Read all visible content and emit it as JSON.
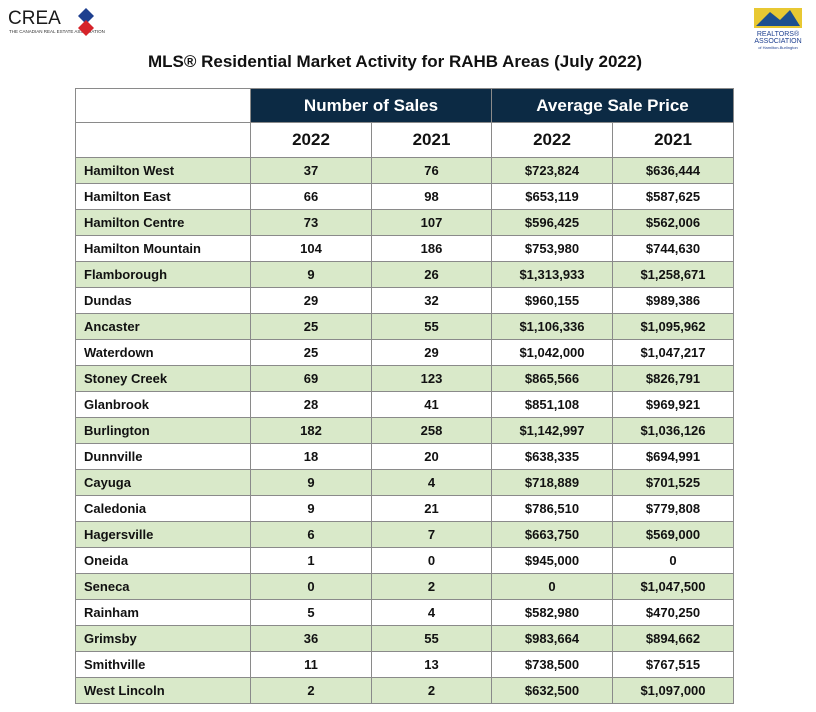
{
  "logos": {
    "left": {
      "name": "CREA",
      "tagline": "THE CANADIAN REAL ESTATE ASSOCIATION"
    },
    "right": {
      "line1": "REALTORS®",
      "line2": "ASSOCIATION",
      "line3": "of Hamilton-Burlington"
    }
  },
  "header": {
    "title": "MLS® Residential Market Activity for RAHB Areas (July 2022)"
  },
  "table": {
    "groups": [
      "Number of Sales",
      "Average Sale Price"
    ],
    "years": [
      "2022",
      "2021",
      "2022",
      "2021"
    ],
    "rows": [
      [
        "Hamilton West",
        "37",
        "76",
        "$723,824",
        "$636,444"
      ],
      [
        "Hamilton East",
        "66",
        "98",
        "$653,119",
        "$587,625"
      ],
      [
        "Hamilton Centre",
        "73",
        "107",
        "$596,425",
        "$562,006"
      ],
      [
        "Hamilton Mountain",
        "104",
        "186",
        "$753,980",
        "$744,630"
      ],
      [
        "Flamborough",
        "9",
        "26",
        "$1,313,933",
        "$1,258,671"
      ],
      [
        "Dundas",
        "29",
        "32",
        "$960,155",
        "$989,386"
      ],
      [
        "Ancaster",
        "25",
        "55",
        "$1,106,336",
        "$1,095,962"
      ],
      [
        "Waterdown",
        "25",
        "29",
        "$1,042,000",
        "$1,047,217"
      ],
      [
        "Stoney Creek",
        "69",
        "123",
        "$865,566",
        "$826,791"
      ],
      [
        "Glanbrook",
        "28",
        "41",
        "$851,108",
        "$969,921"
      ],
      [
        "Burlington",
        "182",
        "258",
        "$1,142,997",
        "$1,036,126"
      ],
      [
        "Dunnville",
        "18",
        "20",
        "$638,335",
        "$694,991"
      ],
      [
        "Cayuga",
        "9",
        "4",
        "$718,889",
        "$701,525"
      ],
      [
        "Caledonia",
        "9",
        "21",
        "$786,510",
        "$779,808"
      ],
      [
        "Hagersville",
        "6",
        "7",
        "$663,750",
        "$569,000"
      ],
      [
        "Oneida",
        "1",
        "0",
        "$945,000",
        "0"
      ],
      [
        "Seneca",
        "0",
        "2",
        "0",
        "$1,047,500"
      ],
      [
        "Rainham",
        "5",
        "4",
        "$582,980",
        "$470,250"
      ],
      [
        "Grimsby",
        "36",
        "55",
        "$983,664",
        "$894,662"
      ],
      [
        "Smithville",
        "11",
        "13",
        "$738,500",
        "$767,515"
      ],
      [
        "West Lincoln",
        "2",
        "2",
        "$632,500",
        "$1,097,000"
      ]
    ]
  }
}
